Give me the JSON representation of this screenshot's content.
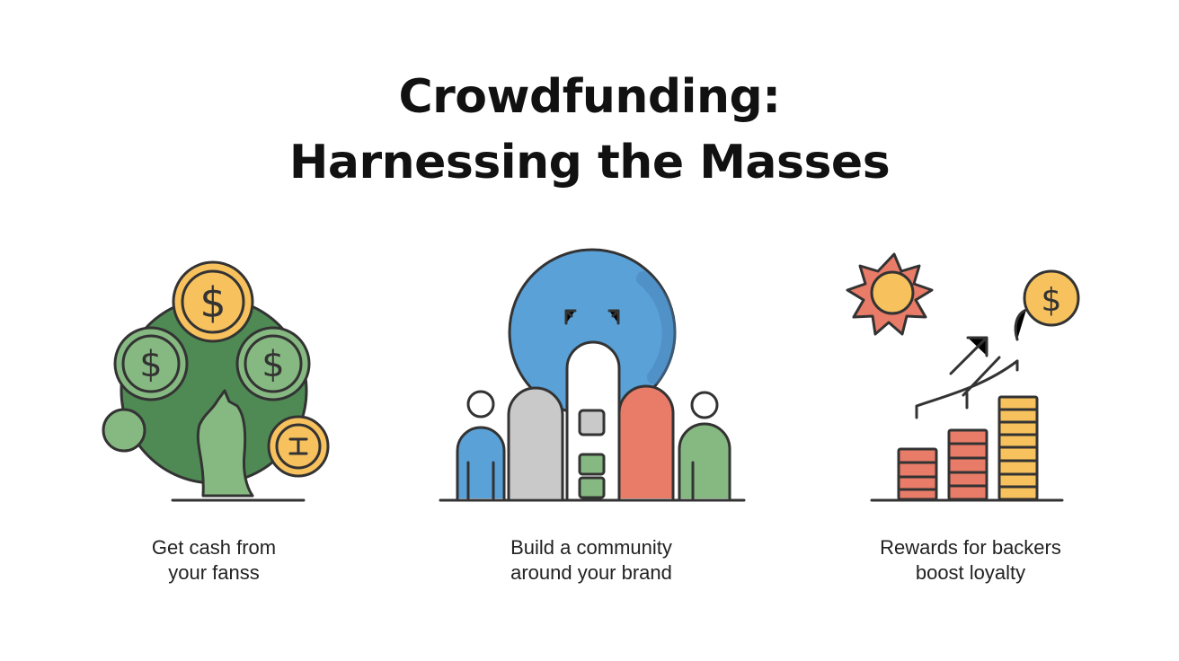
{
  "title": {
    "line1": "Crowdfunding:",
    "line2": "Harnessing the Masses"
  },
  "panels": [
    {
      "caption": [
        "Get cash from",
        "your fanss"
      ],
      "icons": [
        "globe-icon",
        "dollar-coin-icon",
        "tree-icon",
        "person-icon"
      ],
      "coin_symbol": "$"
    },
    {
      "caption": [
        "Build a community",
        "around your brand"
      ],
      "icons": [
        "bubble-icon",
        "people-group-icon"
      ]
    },
    {
      "caption": [
        "Rewards for backers",
        "boost loyalty"
      ],
      "icons": [
        "sun-icon",
        "dollar-coin-icon",
        "growth-arrow-icon",
        "coin-stack-icon"
      ],
      "coin_symbol": "$"
    }
  ],
  "colors": {
    "outline": "#333333",
    "green_dark": "#4f8a55",
    "green_light": "#86b981",
    "gold": "#f7c15e",
    "blue": "#5aa1d8",
    "red": "#e97c68",
    "gray": "#c9c9c9"
  }
}
